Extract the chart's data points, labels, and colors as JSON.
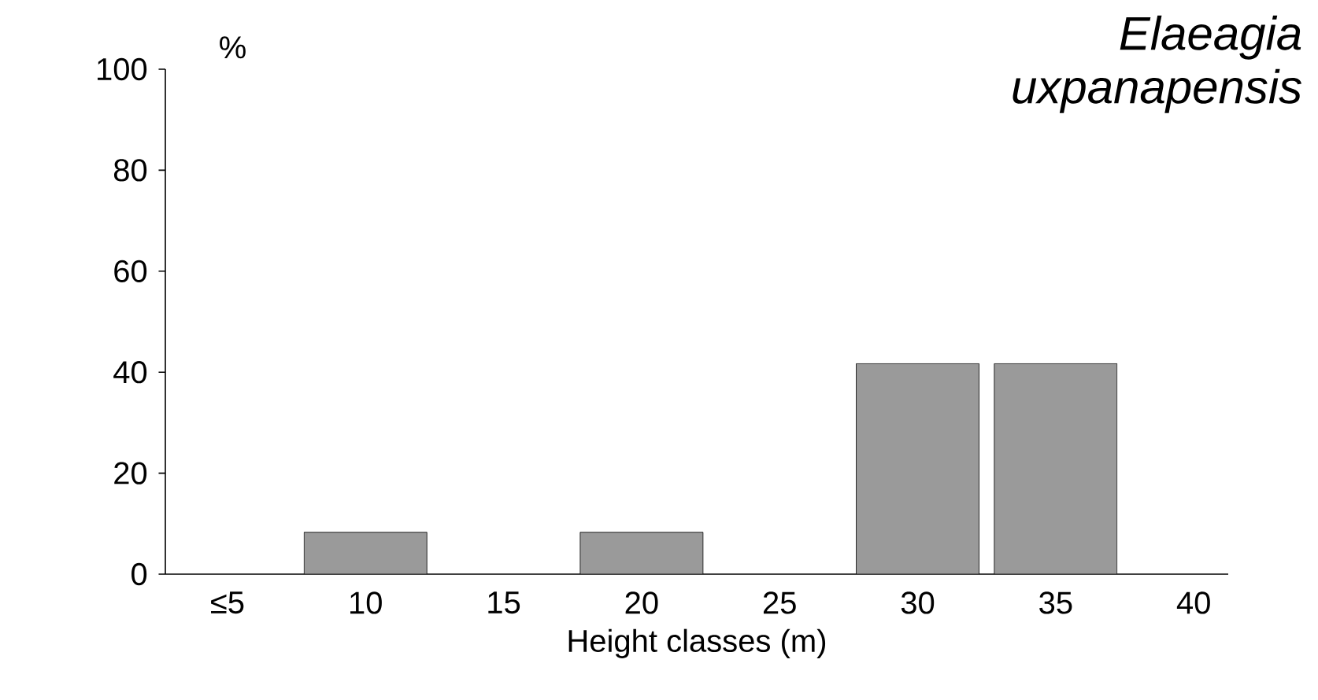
{
  "chart_data": {
    "type": "bar",
    "title": "Elaeagia uxpanapensis",
    "xlabel": "Height classes (m)",
    "ylabel": "%",
    "categories": [
      "≤5",
      "10",
      "15",
      "20",
      "25",
      "30",
      "35",
      "40"
    ],
    "values": [
      0,
      8.3,
      0,
      8.3,
      0,
      41.7,
      41.7,
      0
    ],
    "color": "#9a9a9a",
    "ylim": [
      0,
      100
    ],
    "yticks": [
      0,
      20,
      40,
      60,
      80,
      100
    ]
  }
}
